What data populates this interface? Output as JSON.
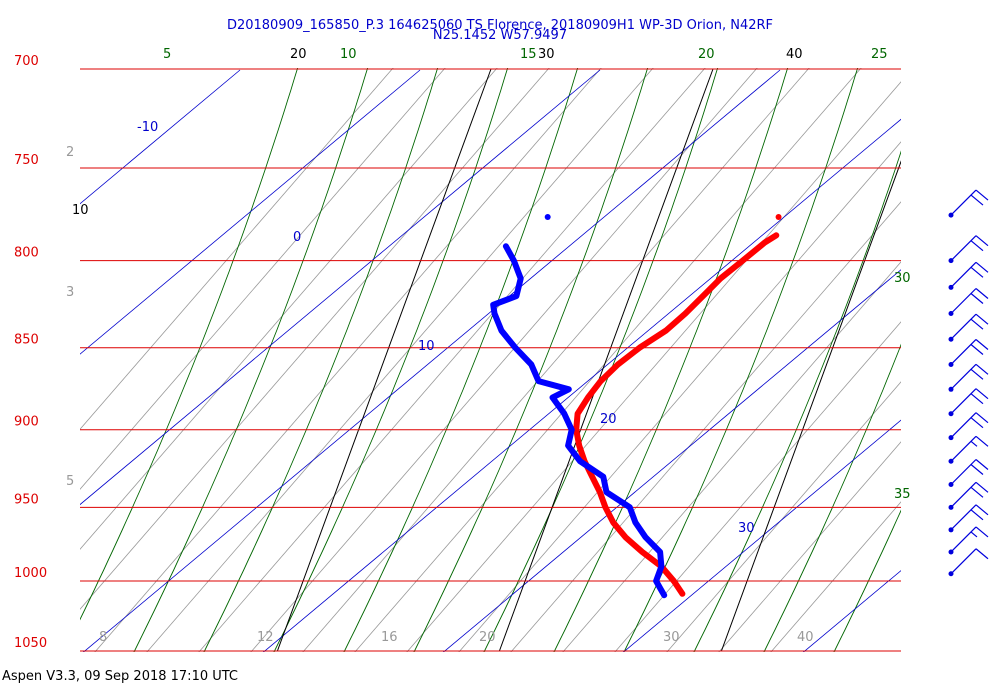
{
  "chart_data": {
    "type": "skew-t log-p sounding",
    "title": {
      "line1": "D20180909_165850_P.3 164625060 TS Florence, 20180909H1 WP-3D Orion, N42RF",
      "line2": "N25.1452 W57.9497"
    },
    "pressure_axis": {
      "ticks": [
        700,
        750,
        800,
        850,
        900,
        950,
        1000,
        1050
      ]
    },
    "isotherms": [
      {
        "value": 10,
        "label": "10"
      },
      {
        "value": 20,
        "label": "20"
      },
      {
        "value": 30,
        "label": "30"
      },
      {
        "value": 40,
        "label": "40"
      }
    ],
    "dry_adiabats": [
      {
        "value": -10,
        "label": "-10"
      },
      {
        "value": 0,
        "label": "0"
      },
      {
        "value": 10,
        "label": "10"
      },
      {
        "value": 20,
        "label": "20"
      },
      {
        "value": 30,
        "label": "30"
      }
    ],
    "moist_adiabats": [
      {
        "value": 5,
        "label": "5"
      },
      {
        "value": 10,
        "label": "10"
      },
      {
        "value": 15,
        "label": "15"
      },
      {
        "value": 20,
        "label": "20"
      },
      {
        "value": 25,
        "label": "25"
      },
      {
        "value": 30,
        "label": "30"
      },
      {
        "value": 35,
        "label": "35"
      }
    ],
    "mixing_ratio_labels_left": [
      "2",
      "3",
      "5"
    ],
    "mixing_ratio_labels_bottom": [
      "8",
      "12",
      "16",
      "20",
      "30",
      "40"
    ],
    "temperature_profile": [
      {
        "p": 786,
        "t": 25.6
      },
      {
        "p": 790,
        "t": 25.2
      },
      {
        "p": 800,
        "t": 24.5
      },
      {
        "p": 810,
        "t": 23.8
      },
      {
        "p": 820,
        "t": 23.3
      },
      {
        "p": 830,
        "t": 22.8
      },
      {
        "p": 840,
        "t": 22.2
      },
      {
        "p": 850,
        "t": 21.3
      },
      {
        "p": 860,
        "t": 20.6
      },
      {
        "p": 870,
        "t": 20.1
      },
      {
        "p": 880,
        "t": 19.8
      },
      {
        "p": 890,
        "t": 19.6
      },
      {
        "p": 900,
        "t": 19.8
      },
      {
        "p": 910,
        "t": 20.2
      },
      {
        "p": 920,
        "t": 20.7
      },
      {
        "p": 930,
        "t": 21.3
      },
      {
        "p": 940,
        "t": 21.9
      },
      {
        "p": 950,
        "t": 22.4
      },
      {
        "p": 960,
        "t": 23.0
      },
      {
        "p": 970,
        "t": 23.8
      },
      {
        "p": 980,
        "t": 24.8
      },
      {
        "p": 990,
        "t": 25.9
      },
      {
        "p": 1000,
        "t": 26.7
      },
      {
        "p": 1009,
        "t": 27.3
      }
    ],
    "temperature_marker": {
      "p": 776,
      "t": 25.4
    },
    "dewpoint_profile": [
      {
        "p": 792,
        "t": 13.6
      },
      {
        "p": 800,
        "t": 14.2
      },
      {
        "p": 810,
        "t": 14.8
      },
      {
        "p": 820,
        "t": 14.9
      },
      {
        "p": 825,
        "t": 14.0
      },
      {
        "p": 830,
        "t": 14.2
      },
      {
        "p": 840,
        "t": 14.8
      },
      {
        "p": 850,
        "t": 15.7
      },
      {
        "p": 860,
        "t": 16.7
      },
      {
        "p": 870,
        "t": 17.3
      },
      {
        "p": 875,
        "t": 18.8
      },
      {
        "p": 880,
        "t": 18.2
      },
      {
        "p": 890,
        "t": 19.0
      },
      {
        "p": 900,
        "t": 19.6
      },
      {
        "p": 910,
        "t": 19.7
      },
      {
        "p": 920,
        "t": 20.5
      },
      {
        "p": 930,
        "t": 21.8
      },
      {
        "p": 940,
        "t": 22.2
      },
      {
        "p": 950,
        "t": 23.5
      },
      {
        "p": 960,
        "t": 24.0
      },
      {
        "p": 970,
        "t": 24.7
      },
      {
        "p": 980,
        "t": 25.6
      },
      {
        "p": 990,
        "t": 25.9
      },
      {
        "p": 1000,
        "t": 25.9
      },
      {
        "p": 1005,
        "t": 26.2
      },
      {
        "p": 1010,
        "t": 26.5
      }
    ],
    "dewpoint_marker": {
      "p": 776,
      "t": 15.0
    },
    "wind_barbs": [
      {
        "p": 775,
        "speed_kt": 20
      },
      {
        "p": 800,
        "speed_kt": 20
      },
      {
        "p": 815,
        "speed_kt": 20
      },
      {
        "p": 830,
        "speed_kt": 20
      },
      {
        "p": 845,
        "speed_kt": 20
      },
      {
        "p": 860,
        "speed_kt": 20
      },
      {
        "p": 875,
        "speed_kt": 20
      },
      {
        "p": 890,
        "speed_kt": 20
      },
      {
        "p": 905,
        "speed_kt": 20
      },
      {
        "p": 920,
        "speed_kt": 15
      },
      {
        "p": 935,
        "speed_kt": 20
      },
      {
        "p": 950,
        "speed_kt": 20
      },
      {
        "p": 965,
        "speed_kt": 20
      },
      {
        "p": 980,
        "speed_kt": 15
      },
      {
        "p": 995,
        "speed_kt": 10
      }
    ],
    "colors": {
      "isobar": "#dd0000",
      "isotherm": "#000000",
      "dry_adiabat": "#0000cc",
      "moist_adiabat": "#006600",
      "mixing_ratio": "#999999",
      "temperature": "#ff0000",
      "dewpoint": "#0000ff",
      "title": "#0000cc"
    }
  },
  "footer": {
    "text": "Aspen V3.3, 09 Sep 2018  17:10 UTC"
  }
}
